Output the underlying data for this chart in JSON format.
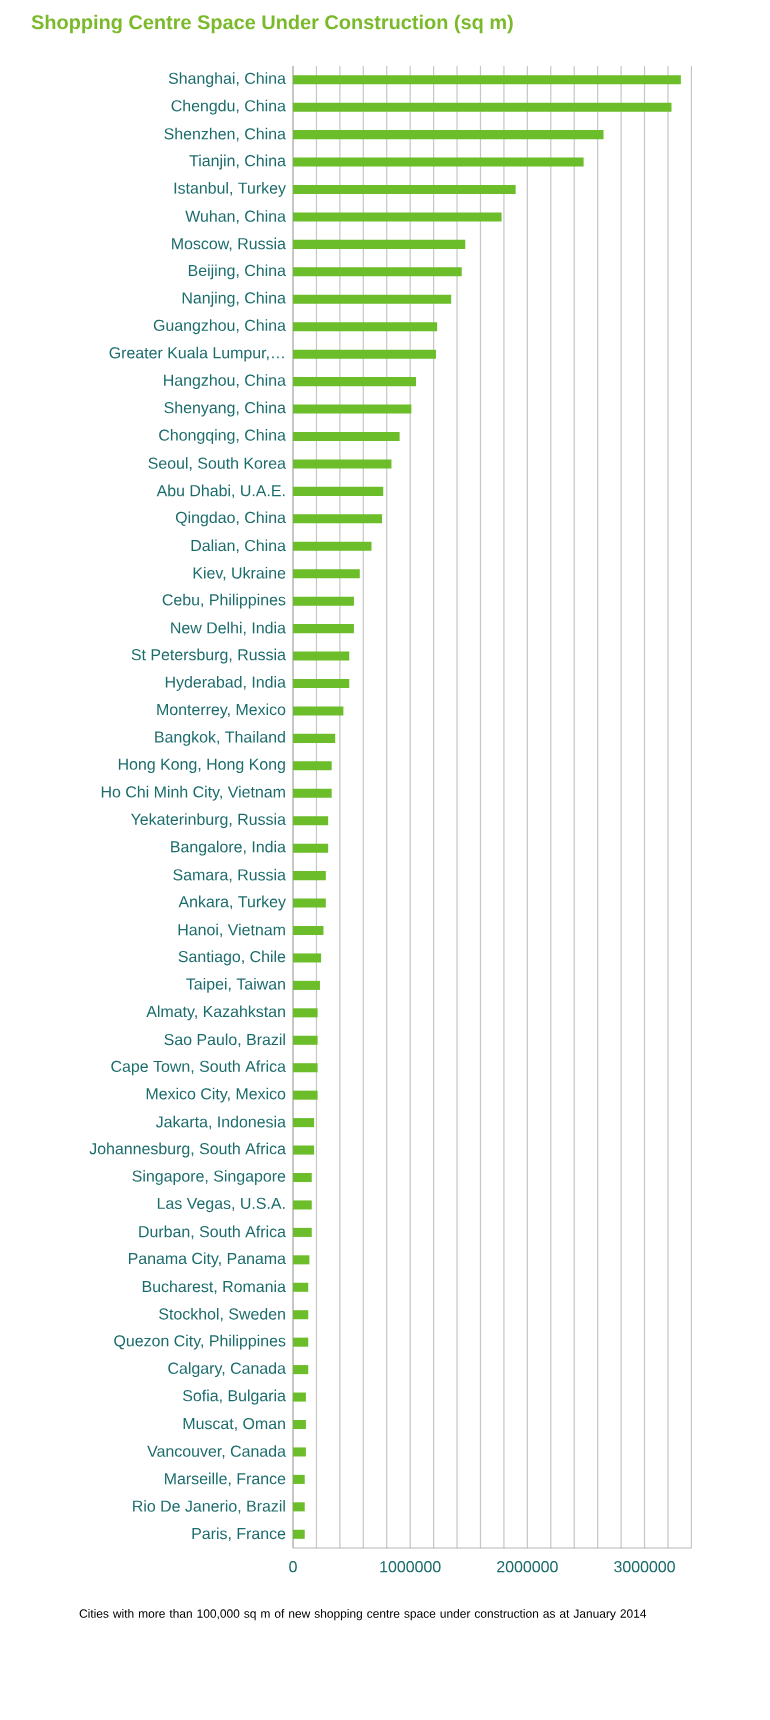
{
  "chart_data": {
    "type": "bar",
    "orientation": "horizontal",
    "title": "Shopping Centre Space Under Construction (sq m)",
    "categories": [
      "Shanghai, China",
      "Chengdu, China",
      "Shenzhen, China",
      "Tianjin, China",
      "Istanbul, Turkey",
      "Wuhan, China",
      "Moscow, Russia",
      "Beijing, China",
      "Nanjing, China",
      "Guangzhou, China",
      "Greater Kuala Lumpur,…",
      "Hangzhou, China",
      "Shenyang, China",
      "Chongqing, China",
      "Seoul, South Korea",
      "Abu Dhabi, U.A.E.",
      "Qingdao, China",
      "Dalian, China",
      "Kiev, Ukraine",
      "Cebu, Philippines",
      "New Delhi, India",
      "St Petersburg, Russia",
      "Hyderabad, India",
      "Monterrey, Mexico",
      "Bangkok, Thailand",
      "Hong Kong, Hong Kong",
      "Ho Chi Minh City, Vietnam",
      "Yekaterinburg, Russia",
      "Bangalore, India",
      "Samara, Russia",
      "Ankara, Turkey",
      "Hanoi, Vietnam",
      "Santiago, Chile",
      "Taipei, Taiwan",
      "Almaty, Kazahkstan",
      "Sao Paulo, Brazil",
      "Cape Town, South Africa",
      "Mexico City, Mexico",
      "Jakarta, Indonesia",
      "Johannesburg, South Africa",
      "Singapore, Singapore",
      "Las Vegas, U.S.A.",
      "Durban, South Africa",
      "Panama City, Panama",
      "Bucharest, Romania",
      "Stockhol, Sweden",
      "Quezon City, Philippines",
      "Calgary, Canada",
      "Sofia, Bulgaria",
      "Muscat, Oman",
      "Vancouver, Canada",
      "Marseille, France",
      "Rio De Janerio, Brazil",
      "Paris, France"
    ],
    "values": [
      3310000,
      3230000,
      2650000,
      2480000,
      1900000,
      1780000,
      1470000,
      1440000,
      1350000,
      1230000,
      1220000,
      1050000,
      1010000,
      910000,
      840000,
      770000,
      760000,
      670000,
      570000,
      520000,
      520000,
      480000,
      480000,
      430000,
      360000,
      330000,
      330000,
      300000,
      300000,
      280000,
      280000,
      260000,
      240000,
      230000,
      210000,
      210000,
      210000,
      210000,
      180000,
      180000,
      160000,
      160000,
      160000,
      140000,
      130000,
      130000,
      130000,
      130000,
      110000,
      110000,
      110000,
      100000,
      100000,
      100000
    ],
    "color": "#6bbd2a",
    "xlim": [
      0,
      3400000
    ],
    "xticks": [
      0,
      {
        "value": 200000,
        "label": null
      },
      {
        "value": 400000,
        "label": null
      },
      {
        "value": 600000,
        "label": null
      },
      {
        "value": 800000,
        "label": null
      },
      1000000,
      {
        "value": 1200000,
        "label": null
      },
      {
        "value": 1400000,
        "label": null
      },
      {
        "value": 1600000,
        "label": null
      },
      {
        "value": 1800000,
        "label": null
      },
      2000000,
      {
        "value": 2200000,
        "label": null
      },
      {
        "value": 2400000,
        "label": null
      },
      {
        "value": 2600000,
        "label": null
      },
      {
        "value": 2800000,
        "label": null
      },
      3000000,
      {
        "value": 3200000,
        "label": null
      },
      {
        "value": 3400000,
        "label": null
      }
    ],
    "grid": "x",
    "annotations": [
      "Cities with more than 100,000 sq m of new shopping centre space under construction as at January  2014"
    ]
  }
}
